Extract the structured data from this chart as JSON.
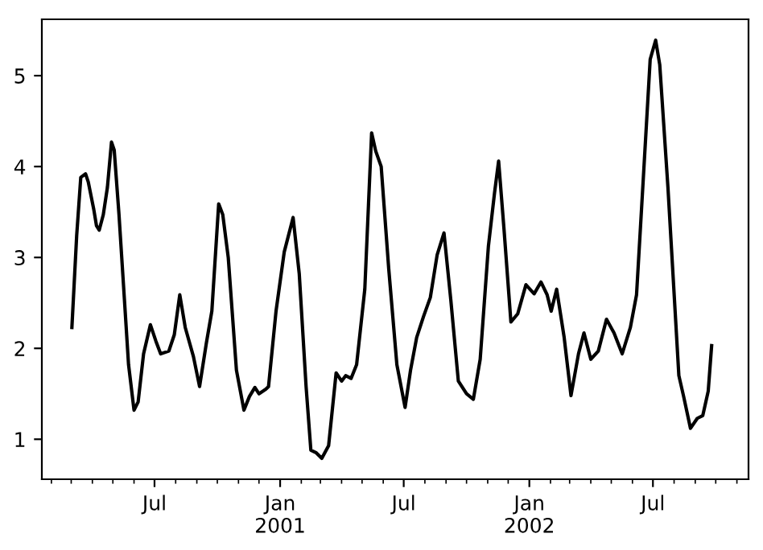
{
  "chart_data": {
    "type": "line",
    "x": [
      "2000-03-02",
      "2000-03-09",
      "2000-03-15",
      "2000-03-22",
      "2000-03-26",
      "2000-04-03",
      "2000-04-07",
      "2000-04-11",
      "2000-04-17",
      "2000-04-23",
      "2000-04-29",
      "2000-05-03",
      "2000-05-10",
      "2000-05-18",
      "2000-05-24",
      "2000-06-01",
      "2000-06-07",
      "2000-06-15",
      "2000-06-25",
      "2000-07-03",
      "2000-07-10",
      "2000-07-22",
      "2000-07-30",
      "2000-08-07",
      "2000-08-15",
      "2000-08-27",
      "2000-09-05",
      "2000-09-15",
      "2000-09-23",
      "2000-10-03",
      "2000-10-09",
      "2000-10-17",
      "2000-10-29",
      "2000-11-09",
      "2000-11-17",
      "2000-11-25",
      "2000-12-01",
      "2000-12-11",
      "2000-12-15",
      "2000-12-26",
      "2001-01-07",
      "2001-01-20",
      "2001-01-29",
      "2001-02-08",
      "2001-02-15",
      "2001-02-23",
      "2001-03-03",
      "2001-03-13",
      "2001-03-24",
      "2001-04-01",
      "2001-04-07",
      "2001-04-15",
      "2001-04-23",
      "2001-05-05",
      "2001-05-15",
      "2001-05-21",
      "2001-05-29",
      "2001-06-09",
      "2001-06-21",
      "2001-07-03",
      "2001-07-11",
      "2001-07-20",
      "2001-07-30",
      "2001-08-09",
      "2001-08-19",
      "2001-08-29",
      "2001-09-08",
      "2001-09-19",
      "2001-10-01",
      "2001-10-11",
      "2001-10-21",
      "2001-11-02",
      "2001-11-11",
      "2001-11-17",
      "2001-11-25",
      "2001-12-05",
      "2001-12-15",
      "2001-12-27",
      "2002-01-08",
      "2002-01-18",
      "2002-01-27",
      "2002-02-02",
      "2002-02-10",
      "2002-02-21",
      "2002-03-03",
      "2002-03-14",
      "2002-03-22",
      "2002-04-01",
      "2002-04-12",
      "2002-04-24",
      "2002-05-05",
      "2002-05-17",
      "2002-05-29",
      "2002-06-07",
      "2002-06-17",
      "2002-06-27",
      "2002-07-05",
      "2002-07-11",
      "2002-07-23",
      "2002-08-08",
      "2002-08-15",
      "2002-08-25",
      "2002-09-04",
      "2002-09-12",
      "2002-09-20",
      "2002-09-25"
    ],
    "series": [
      {
        "color": "#000000",
        "values": [
          2.23,
          3.24,
          3.88,
          3.92,
          3.83,
          3.53,
          3.35,
          3.3,
          3.47,
          3.77,
          4.27,
          4.18,
          3.47,
          2.53,
          1.82,
          1.32,
          1.41,
          1.94,
          2.26,
          2.08,
          1.94,
          1.97,
          2.15,
          2.59,
          2.23,
          1.91,
          1.58,
          2.06,
          2.41,
          3.59,
          3.47,
          3.0,
          1.76,
          1.32,
          1.47,
          1.57,
          1.5,
          1.55,
          1.58,
          2.41,
          3.06,
          3.44,
          2.82,
          1.58,
          0.88,
          0.85,
          0.79,
          0.93,
          1.73,
          1.64,
          1.7,
          1.67,
          1.82,
          2.65,
          4.37,
          4.17,
          4.0,
          2.88,
          1.82,
          1.35,
          1.76,
          2.12,
          2.35,
          2.56,
          3.03,
          3.27,
          2.53,
          1.64,
          1.5,
          1.44,
          1.88,
          3.12,
          3.71,
          4.06,
          3.3,
          2.29,
          2.38,
          2.7,
          2.6,
          2.73,
          2.59,
          2.41,
          2.65,
          2.12,
          1.48,
          1.94,
          2.17,
          1.88,
          1.97,
          2.32,
          2.17,
          1.94,
          2.23,
          2.59,
          3.88,
          5.18,
          5.39,
          5.12,
          3.77,
          1.7,
          1.47,
          1.12,
          1.23,
          1.26,
          1.53,
          2.03
        ]
      }
    ],
    "xlim": [
      "2000-01-18",
      "2002-11-18"
    ],
    "xticks": [
      {
        "value": "2000-02-01",
        "label": null
      },
      {
        "value": "2000-03-01",
        "label": null
      },
      {
        "value": "2000-04-01",
        "label": null
      },
      {
        "value": "2000-05-01",
        "label": null
      },
      {
        "value": "2000-06-01",
        "label": null
      },
      {
        "value": "2000-07-01",
        "label": "Jul"
      },
      {
        "value": "2000-08-01",
        "label": null
      },
      {
        "value": "2000-09-01",
        "label": null
      },
      {
        "value": "2000-10-01",
        "label": null
      },
      {
        "value": "2000-11-01",
        "label": null
      },
      {
        "value": "2000-12-01",
        "label": null
      },
      {
        "value": "2001-01-01",
        "label": "Jan\n2001"
      },
      {
        "value": "2001-02-01",
        "label": null
      },
      {
        "value": "2001-03-01",
        "label": null
      },
      {
        "value": "2001-04-01",
        "label": null
      },
      {
        "value": "2001-05-01",
        "label": null
      },
      {
        "value": "2001-06-01",
        "label": null
      },
      {
        "value": "2001-07-01",
        "label": "Jul"
      },
      {
        "value": "2001-08-01",
        "label": null
      },
      {
        "value": "2001-09-01",
        "label": null
      },
      {
        "value": "2001-10-01",
        "label": null
      },
      {
        "value": "2001-11-01",
        "label": null
      },
      {
        "value": "2001-12-01",
        "label": null
      },
      {
        "value": "2002-01-01",
        "label": "Jan\n2002"
      },
      {
        "value": "2002-02-01",
        "label": null
      },
      {
        "value": "2002-03-01",
        "label": null
      },
      {
        "value": "2002-04-01",
        "label": null
      },
      {
        "value": "2002-05-01",
        "label": null
      },
      {
        "value": "2002-06-01",
        "label": null
      },
      {
        "value": "2002-07-01",
        "label": "Jul"
      },
      {
        "value": "2002-08-01",
        "label": null
      },
      {
        "value": "2002-09-01",
        "label": null
      },
      {
        "value": "2002-10-01",
        "label": null
      },
      {
        "value": "2002-11-01",
        "label": null
      }
    ],
    "ylim": [
      0.56,
      5.62
    ],
    "yticks": [
      1,
      2,
      3,
      4,
      5
    ],
    "marker": "none",
    "line_style": "solid"
  }
}
